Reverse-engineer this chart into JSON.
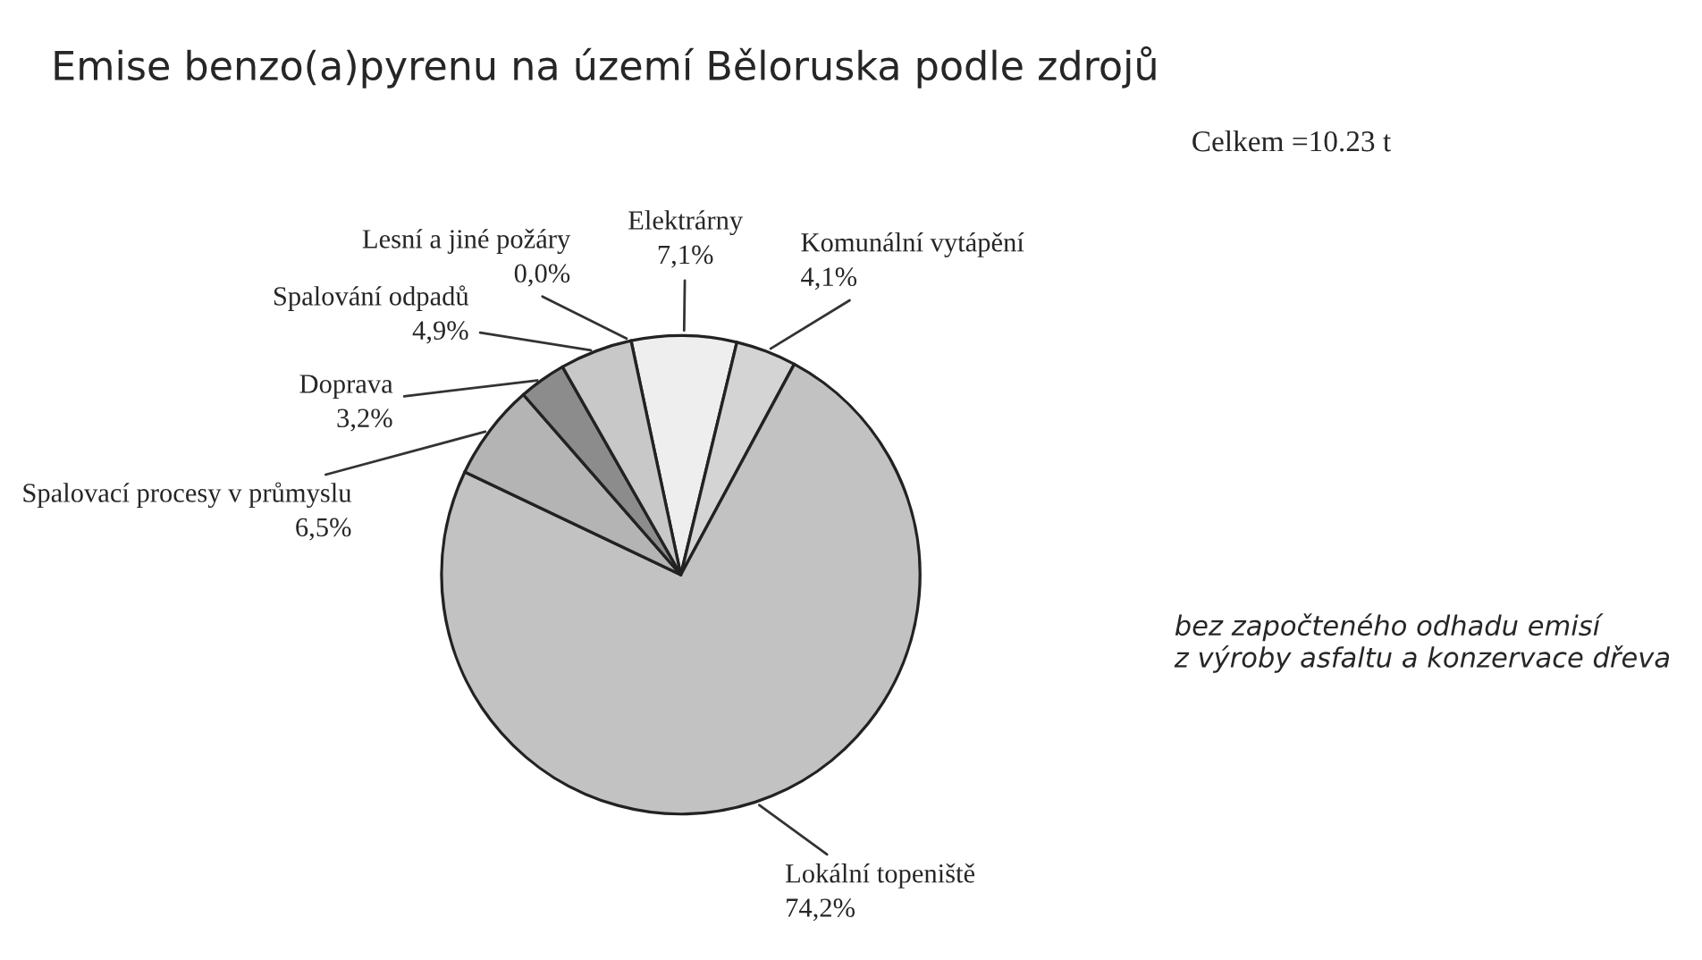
{
  "chart_data": {
    "type": "pie",
    "title": "Emise benzo(a)pyrenu na území Běloruska podle zdrojů",
    "categories": [
      "Elektrárny",
      "Komunální vytápění",
      "Lokální topeniště",
      "Spalovací procesy v průmyslu",
      "Doprava",
      "Spalování odpadů",
      "Lesní a jiné požáry"
    ],
    "values": [
      7.1,
      4.1,
      74.2,
      6.5,
      3.2,
      4.9,
      0.0
    ],
    "value_labels": [
      "7,1%",
      "4,1%",
      "74,2%",
      "6,5%",
      "3,2%",
      "4,9%",
      "0,0%"
    ],
    "colors": [
      "#eeeeee",
      "#d4d4d4",
      "#c2c2c2",
      "#b4b4b4",
      "#8c8c8c",
      "#c8c8c8",
      "#dddddd"
    ],
    "annotations": [
      "Celkem =10.23 t",
      "bez započteného odhadu emisí\nz výroby asfaltu a konzervace dřeva"
    ],
    "legend": false
  }
}
